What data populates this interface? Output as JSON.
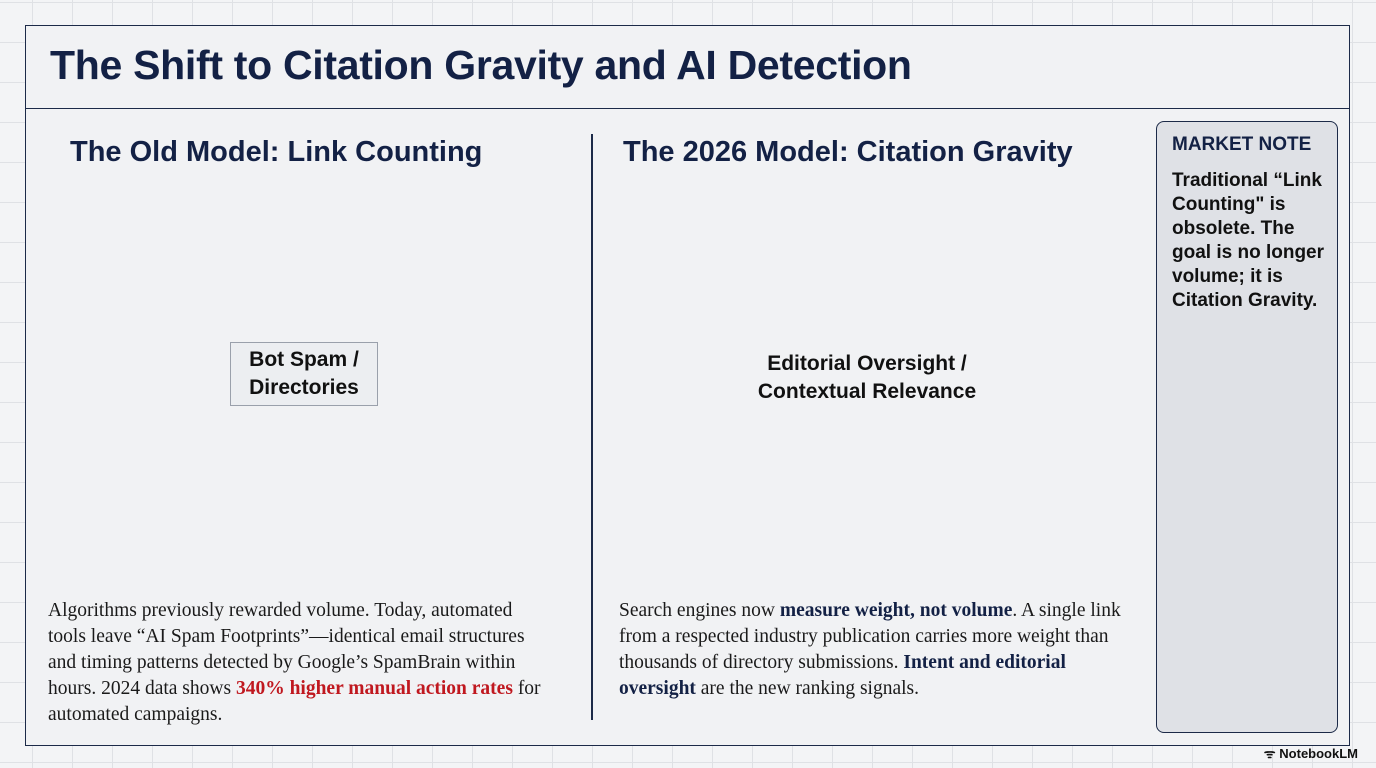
{
  "title": "The Shift to Citation Gravity and AI Detection",
  "left": {
    "heading": "The Old Model: Link Counting",
    "diagram_label_line1": "Bot Spam /",
    "diagram_label_line2": "Directories",
    "para_1": "Algorithms previously rewarded volume. Today, automated tools leave “AI Spam Footprints”—identical email structures and timing patterns detected by Google’s SpamBrain within hours. 2024 data shows ",
    "para_highlight": "340% higher manual action rates",
    "para_2": " for automated campaigns."
  },
  "right": {
    "heading": "The 2026 Model: Citation Gravity",
    "hub_label_line1": "Editorial Oversight /",
    "hub_label_line2": "Contextual Relevance",
    "para_1": "Search engines now ",
    "para_bold_1": "measure weight, not volume",
    "para_2": ". A single link from a respected industry publication carries more weight than thousands of directory submissions. ",
    "para_bold_2": "Intent and editorial oversight",
    "para_3": " are the new ranking signals."
  },
  "note": {
    "heading": "MARKET NOTE",
    "text": "Traditional “Link Counting\" is obsolete. The goal is no longer volume; it is Citation Gravity."
  },
  "brand": "NotebookLM",
  "colors": {
    "navy": "#132145",
    "gray": "#8d929c",
    "red": "#c0181f"
  }
}
